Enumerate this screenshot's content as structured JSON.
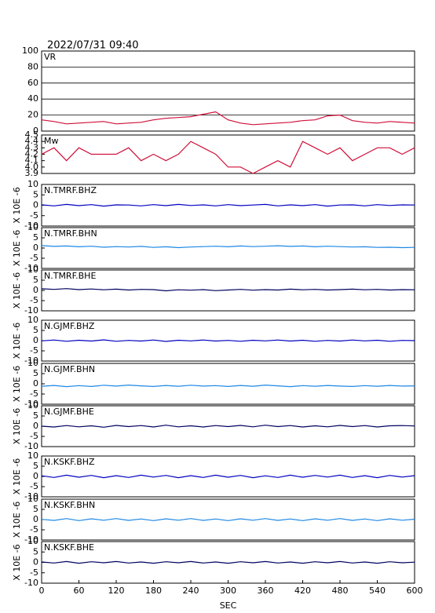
{
  "chart_data": [
    {
      "type": "line",
      "title": "2022/07/31 09:40",
      "label": "VR",
      "color": "#d0103a",
      "grid": true,
      "xlim": [
        0,
        600
      ],
      "ylim": [
        0,
        100
      ],
      "yticks": [
        0,
        20,
        40,
        60,
        80,
        100
      ],
      "x": [
        0,
        20,
        40,
        60,
        80,
        100,
        120,
        140,
        160,
        180,
        200,
        220,
        240,
        260,
        280,
        300,
        320,
        340,
        360,
        380,
        400,
        420,
        440,
        460,
        480,
        500,
        520,
        540,
        560,
        580,
        600
      ],
      "values": [
        14,
        12,
        9,
        10,
        11,
        12,
        9,
        10,
        11,
        14,
        16,
        17,
        18,
        21,
        24,
        14,
        10,
        8,
        9,
        10,
        11,
        13,
        14,
        19,
        20,
        13,
        11,
        10,
        12,
        11,
        10
      ]
    },
    {
      "type": "step",
      "label": "Mw",
      "color": "#d0103a",
      "grid": false,
      "xlim": [
        0,
        600
      ],
      "ylim": [
        3.9,
        4.5
      ],
      "yticks": [
        3.9,
        {
          "value": 4,
          "label": "4.0"
        },
        4.1,
        4.2,
        4.3,
        4.4,
        4.5
      ],
      "x": [
        0,
        20,
        40,
        60,
        80,
        100,
        120,
        140,
        160,
        180,
        200,
        220,
        240,
        260,
        280,
        300,
        320,
        340,
        360,
        380,
        400,
        420,
        440,
        460,
        480,
        500,
        520,
        540,
        560,
        580,
        600
      ],
      "values": [
        4.2,
        4.3,
        4.1,
        4.3,
        4.2,
        4.2,
        4.2,
        4.3,
        4.1,
        4.2,
        4.1,
        4.2,
        4.4,
        4.3,
        4.2,
        4.0,
        4.0,
        3.9,
        4.0,
        4.1,
        4.0,
        4.4,
        4.3,
        4.2,
        4.3,
        4.1,
        4.2,
        4.3,
        4.3,
        4.2,
        4.3
      ]
    },
    {
      "type": "line",
      "label": "N.TMRF.BHZ",
      "ylabel": "X 10E -6",
      "color": "#0000c0",
      "xlim": [
        0,
        600
      ],
      "ylim": [
        -10,
        10
      ],
      "yticks": [
        -10,
        -5,
        0,
        5,
        10
      ],
      "x": [
        0,
        20,
        40,
        60,
        80,
        100,
        120,
        140,
        160,
        180,
        200,
        220,
        240,
        260,
        280,
        300,
        320,
        340,
        360,
        380,
        400,
        420,
        440,
        460,
        480,
        500,
        520,
        540,
        560,
        580,
        600
      ],
      "values": [
        0.2,
        -0.3,
        0.4,
        -0.2,
        0.3,
        -0.4,
        0.2,
        0.1,
        -0.3,
        0.3,
        -0.2,
        0.4,
        -0.1,
        0.2,
        -0.3,
        0.3,
        -0.2,
        0.1,
        0.4,
        -0.3,
        0.2,
        -0.2,
        0.3,
        -0.4,
        0.1,
        0.2,
        -0.3,
        0.3,
        -0.1,
        0.2,
        0.1
      ]
    },
    {
      "type": "line",
      "label": "N.TMRF.BHN",
      "ylabel": "X 10E -6",
      "color": "#1e88e5",
      "xlim": [
        0,
        600
      ],
      "ylim": [
        -10,
        10
      ],
      "yticks": [
        -10,
        -5,
        0,
        5,
        10
      ],
      "x": [
        0,
        20,
        40,
        60,
        80,
        100,
        120,
        140,
        160,
        180,
        200,
        220,
        240,
        260,
        280,
        300,
        320,
        340,
        360,
        380,
        400,
        420,
        440,
        460,
        480,
        500,
        520,
        540,
        560,
        580,
        600
      ],
      "values": [
        1.2,
        0.8,
        1.0,
        0.6,
        0.9,
        0.4,
        0.7,
        0.5,
        0.8,
        0.3,
        0.6,
        0.2,
        0.5,
        0.7,
        0.9,
        0.6,
        1.0,
        0.7,
        0.9,
        1.1,
        0.8,
        1.0,
        0.6,
        0.9,
        0.7,
        0.5,
        0.6,
        0.3,
        0.4,
        0.2,
        0.3
      ]
    },
    {
      "type": "line",
      "label": "N.TMRF.BHE",
      "ylabel": "X 10E -6",
      "color": "#000060",
      "xlim": [
        0,
        600
      ],
      "ylim": [
        -10,
        10
      ],
      "yticks": [
        -10,
        -5,
        0,
        5,
        10
      ],
      "x": [
        0,
        20,
        40,
        60,
        80,
        100,
        120,
        140,
        160,
        180,
        200,
        220,
        240,
        260,
        280,
        300,
        320,
        340,
        360,
        380,
        400,
        420,
        440,
        460,
        480,
        500,
        520,
        540,
        560,
        580,
        600
      ],
      "values": [
        0.8,
        0.5,
        0.9,
        0.4,
        0.7,
        0.3,
        0.6,
        0.2,
        0.5,
        0.4,
        -0.2,
        0.3,
        0.1,
        0.4,
        -0.1,
        0.2,
        0.5,
        0.1,
        0.4,
        0.2,
        0.6,
        0.3,
        0.5,
        0.2,
        0.4,
        0.6,
        0.3,
        0.5,
        0.2,
        0.4,
        0.3
      ]
    },
    {
      "type": "line",
      "label": "N.GJMF.BHZ",
      "ylabel": "X 10E -6",
      "color": "#0000c0",
      "xlim": [
        0,
        600
      ],
      "ylim": [
        -10,
        10
      ],
      "yticks": [
        -10,
        -5,
        0,
        5,
        10
      ],
      "x": [
        0,
        20,
        40,
        60,
        80,
        100,
        120,
        140,
        160,
        180,
        200,
        220,
        240,
        260,
        280,
        300,
        320,
        340,
        360,
        380,
        400,
        420,
        440,
        460,
        480,
        500,
        520,
        540,
        560,
        580,
        600
      ],
      "values": [
        -0.1,
        0.3,
        -0.3,
        0.2,
        -0.2,
        0.4,
        -0.3,
        0.1,
        -0.2,
        0.3,
        -0.4,
        0.2,
        -0.1,
        0.3,
        -0.2,
        0.1,
        -0.3,
        0.2,
        -0.1,
        0.3,
        -0.2,
        0.2,
        -0.3,
        0.1,
        -0.2,
        0.3,
        -0.1,
        0.2,
        -0.3,
        0.1,
        0.0
      ]
    },
    {
      "type": "line",
      "label": "N.GJMF.BHN",
      "ylabel": "X 10E -6",
      "color": "#1e88e5",
      "xlim": [
        0,
        600
      ],
      "ylim": [
        -10,
        10
      ],
      "yticks": [
        -10,
        -5,
        0,
        5,
        10
      ],
      "x": [
        0,
        20,
        40,
        60,
        80,
        100,
        120,
        140,
        160,
        180,
        200,
        220,
        240,
        260,
        280,
        300,
        320,
        340,
        360,
        380,
        400,
        420,
        440,
        460,
        480,
        500,
        520,
        540,
        560,
        580,
        600
      ],
      "values": [
        -1.2,
        -0.8,
        -1.4,
        -0.9,
        -1.3,
        -0.7,
        -1.1,
        -0.6,
        -1.0,
        -1.3,
        -0.8,
        -1.2,
        -0.7,
        -1.1,
        -0.9,
        -1.3,
        -0.8,
        -1.2,
        -0.6,
        -1.0,
        -1.4,
        -0.9,
        -1.2,
        -0.8,
        -1.1,
        -1.3,
        -0.9,
        -1.2,
        -0.8,
        -1.1,
        -1.0
      ]
    },
    {
      "type": "line",
      "label": "N.GJMF.BHE",
      "ylabel": "X 10E -6",
      "color": "#000060",
      "xlim": [
        0,
        600
      ],
      "ylim": [
        -10,
        10
      ],
      "yticks": [
        -10,
        -5,
        0,
        5,
        10
      ],
      "x": [
        0,
        20,
        40,
        60,
        80,
        100,
        120,
        140,
        160,
        180,
        200,
        220,
        240,
        260,
        280,
        300,
        320,
        340,
        360,
        380,
        400,
        420,
        440,
        460,
        480,
        500,
        520,
        540,
        560,
        580,
        600
      ],
      "values": [
        0.0,
        -0.4,
        0.3,
        -0.3,
        0.2,
        -0.5,
        0.4,
        -0.2,
        0.3,
        -0.4,
        0.5,
        -0.3,
        0.2,
        -0.4,
        0.3,
        -0.2,
        0.4,
        -0.3,
        0.5,
        -0.2,
        0.3,
        -0.4,
        0.2,
        -0.3,
        0.4,
        -0.2,
        0.3,
        -0.4,
        0.2,
        0.3,
        0.1
      ]
    },
    {
      "type": "line",
      "label": "N.KSKF.BHZ",
      "ylabel": "X 10E -6",
      "color": "#0000c0",
      "xlim": [
        0,
        600
      ],
      "ylim": [
        -10,
        10
      ],
      "yticks": [
        -10,
        -5,
        0,
        5,
        10
      ],
      "x": [
        0,
        20,
        40,
        60,
        80,
        100,
        120,
        140,
        160,
        180,
        200,
        220,
        240,
        260,
        280,
        300,
        320,
        340,
        360,
        380,
        400,
        420,
        440,
        460,
        480,
        500,
        520,
        540,
        560,
        580,
        600
      ],
      "values": [
        0.3,
        -0.5,
        0.6,
        -0.4,
        0.5,
        -0.6,
        0.4,
        -0.5,
        0.6,
        -0.3,
        0.5,
        -0.6,
        0.4,
        -0.5,
        0.6,
        -0.4,
        0.5,
        -0.6,
        0.3,
        -0.5,
        0.6,
        -0.4,
        0.5,
        -0.3,
        0.6,
        -0.5,
        0.4,
        -0.6,
        0.5,
        -0.3,
        0.4
      ]
    },
    {
      "type": "line",
      "label": "N.KSKF.BHN",
      "ylabel": "X 10E -6",
      "color": "#1e88e5",
      "xlim": [
        0,
        600
      ],
      "ylim": [
        -10,
        10
      ],
      "yticks": [
        -10,
        -5,
        0,
        5,
        10
      ],
      "x": [
        0,
        20,
        40,
        60,
        80,
        100,
        120,
        140,
        160,
        180,
        200,
        220,
        240,
        260,
        280,
        300,
        320,
        340,
        360,
        380,
        400,
        420,
        440,
        460,
        480,
        500,
        520,
        540,
        560,
        580,
        600
      ],
      "values": [
        0.1,
        -0.4,
        0.5,
        -0.5,
        0.4,
        -0.3,
        0.5,
        -0.4,
        0.3,
        -0.5,
        0.4,
        -0.3,
        0.5,
        -0.4,
        0.3,
        -0.5,
        0.4,
        -0.3,
        0.5,
        -0.4,
        0.3,
        -0.5,
        0.4,
        -0.3,
        0.5,
        -0.4,
        0.3,
        -0.5,
        0.4,
        -0.3,
        0.2
      ]
    },
    {
      "type": "line",
      "label": "N.KSKF.BHE",
      "ylabel": "X 10E -6",
      "color": "#000060",
      "xlim": [
        0,
        600
      ],
      "ylim": [
        -10,
        10
      ],
      "yticks": [
        -10,
        -5,
        0,
        5,
        10
      ],
      "xlabel": "SEC",
      "xticks": [
        0,
        60,
        120,
        180,
        240,
        300,
        360,
        420,
        480,
        540,
        600
      ],
      "x": [
        0,
        20,
        40,
        60,
        80,
        100,
        120,
        140,
        160,
        180,
        200,
        220,
        240,
        260,
        280,
        300,
        320,
        340,
        360,
        380,
        400,
        420,
        440,
        460,
        480,
        500,
        520,
        540,
        560,
        580,
        600
      ],
      "values": [
        0.2,
        -0.3,
        0.4,
        -0.4,
        0.3,
        -0.2,
        0.4,
        -0.3,
        0.2,
        -0.4,
        0.3,
        -0.2,
        0.4,
        -0.3,
        0.2,
        -0.4,
        0.3,
        -0.2,
        0.4,
        -0.3,
        0.2,
        -0.4,
        0.3,
        -0.2,
        0.4,
        -0.3,
        0.2,
        -0.4,
        0.3,
        -0.2,
        0.1
      ]
    }
  ]
}
